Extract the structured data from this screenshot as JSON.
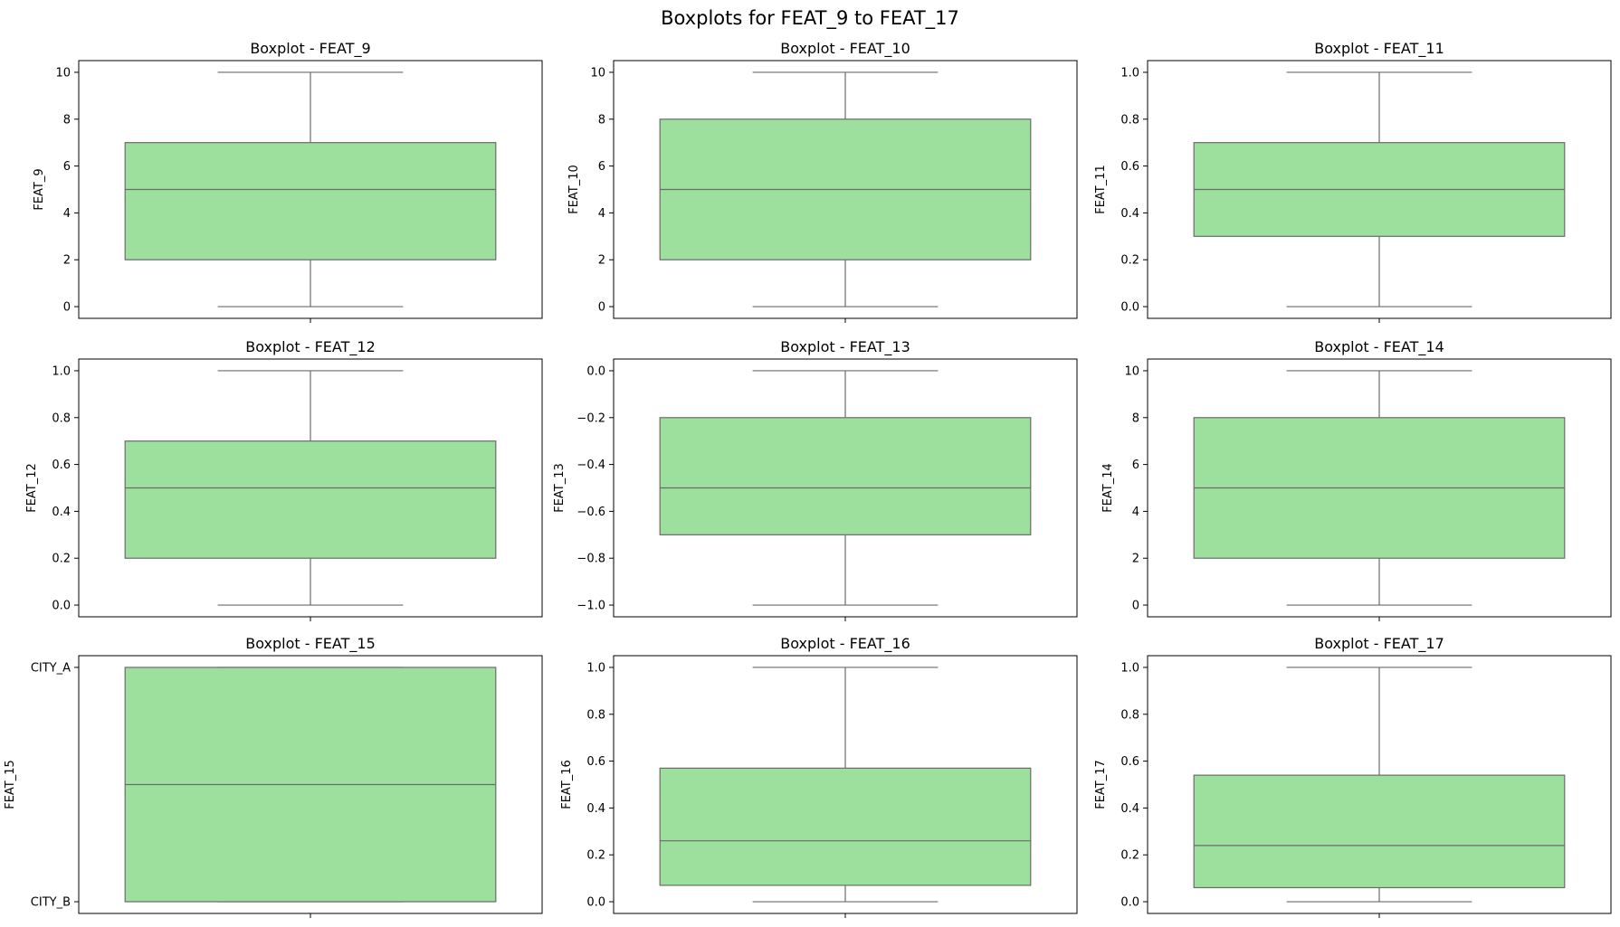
{
  "figure": {
    "suptitle": "Boxplots for FEAT_9 to FEAT_17"
  },
  "colors": {
    "box_fill": "#9de09d",
    "box_edge": "#6b6b6b",
    "axes_edge": "#000000",
    "background": "#ffffff"
  },
  "chart_data": [
    {
      "type": "box",
      "title": "Boxplot - FEAT_9",
      "ylabel": "FEAT_9",
      "ylim": [
        -0.5,
        10.5
      ],
      "yticks": [
        0,
        2,
        4,
        6,
        8,
        10
      ],
      "ytick_labels": [
        "0",
        "2",
        "4",
        "6",
        "8",
        "10"
      ],
      "box": {
        "min": 0,
        "q1": 2,
        "median": 5,
        "q3": 7,
        "max": 10
      }
    },
    {
      "type": "box",
      "title": "Boxplot - FEAT_10",
      "ylabel": "FEAT_10",
      "ylim": [
        -0.5,
        10.5
      ],
      "yticks": [
        0,
        2,
        4,
        6,
        8,
        10
      ],
      "ytick_labels": [
        "0",
        "2",
        "4",
        "6",
        "8",
        "10"
      ],
      "box": {
        "min": 0,
        "q1": 2,
        "median": 5,
        "q3": 8,
        "max": 10
      }
    },
    {
      "type": "box",
      "title": "Boxplot - FEAT_11",
      "ylabel": "FEAT_11",
      "ylim": [
        -0.05,
        1.05
      ],
      "yticks": [
        0,
        0.2,
        0.4,
        0.6,
        0.8,
        1
      ],
      "ytick_labels": [
        "0.0",
        "0.2",
        "0.4",
        "0.6",
        "0.8",
        "1.0"
      ],
      "box": {
        "min": 0,
        "q1": 0.3,
        "median": 0.5,
        "q3": 0.7,
        "max": 1
      }
    },
    {
      "type": "box",
      "title": "Boxplot - FEAT_12",
      "ylabel": "FEAT_12",
      "ylim": [
        -0.05,
        1.05
      ],
      "yticks": [
        0,
        0.2,
        0.4,
        0.6,
        0.8,
        1
      ],
      "ytick_labels": [
        "0.0",
        "0.2",
        "0.4",
        "0.6",
        "0.8",
        "1.0"
      ],
      "box": {
        "min": 0,
        "q1": 0.2,
        "median": 0.5,
        "q3": 0.7,
        "max": 1
      }
    },
    {
      "type": "box",
      "title": "Boxplot - FEAT_13",
      "ylabel": "FEAT_13",
      "ylim": [
        -1.05,
        0.05
      ],
      "yticks": [
        -1,
        -0.8,
        -0.6,
        -0.4,
        -0.2,
        0
      ],
      "ytick_labels": [
        "−1.0",
        "−0.8",
        "−0.6",
        "−0.4",
        "−0.2",
        "0.0"
      ],
      "box": {
        "min": -1,
        "q1": -0.7,
        "median": -0.5,
        "q3": -0.2,
        "max": 0
      }
    },
    {
      "type": "box",
      "title": "Boxplot - FEAT_14",
      "ylabel": "FEAT_14",
      "ylim": [
        -0.5,
        10.5
      ],
      "yticks": [
        0,
        2,
        4,
        6,
        8,
        10
      ],
      "ytick_labels": [
        "0",
        "2",
        "4",
        "6",
        "8",
        "10"
      ],
      "box": {
        "min": 0,
        "q1": 2,
        "median": 5,
        "q3": 8,
        "max": 10
      }
    },
    {
      "type": "box",
      "title": "Boxplot - FEAT_15",
      "ylabel": "FEAT_15",
      "ylim": [
        -0.05,
        1.05
      ],
      "yticks": [
        0,
        1
      ],
      "ytick_labels": [
        "CITY_B",
        "CITY_A"
      ],
      "box": {
        "min": 0,
        "q1": 0,
        "median": 0.5,
        "q3": 1,
        "max": 1
      }
    },
    {
      "type": "box",
      "title": "Boxplot - FEAT_16",
      "ylabel": "FEAT_16",
      "ylim": [
        -0.05,
        1.05
      ],
      "yticks": [
        0,
        0.2,
        0.4,
        0.6,
        0.8,
        1
      ],
      "ytick_labels": [
        "0.0",
        "0.2",
        "0.4",
        "0.6",
        "0.8",
        "1.0"
      ],
      "box": {
        "min": 0,
        "q1": 0.07,
        "median": 0.26,
        "q3": 0.57,
        "max": 1
      }
    },
    {
      "type": "box",
      "title": "Boxplot - FEAT_17",
      "ylabel": "FEAT_17",
      "ylim": [
        -0.05,
        1.05
      ],
      "yticks": [
        0,
        0.2,
        0.4,
        0.6,
        0.8,
        1
      ],
      "ytick_labels": [
        "0.0",
        "0.2",
        "0.4",
        "0.6",
        "0.8",
        "1.0"
      ],
      "box": {
        "min": 0,
        "q1": 0.06,
        "median": 0.24,
        "q3": 0.54,
        "max": 1
      }
    }
  ]
}
